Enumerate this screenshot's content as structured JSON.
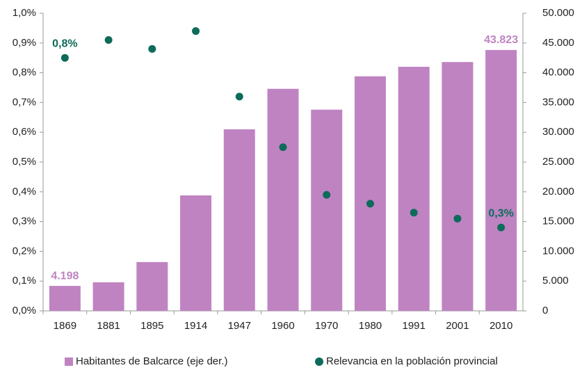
{
  "chart_data": {
    "type": "bar",
    "categories": [
      "1869",
      "1881",
      "1895",
      "1914",
      "1947",
      "1960",
      "1970",
      "1980",
      "1991",
      "2001",
      "2010"
    ],
    "series": [
      {
        "name": "Habitantes de Balcarce (eje der.)",
        "type": "bar",
        "axis": "y2",
        "color": "#bf83c2",
        "values": [
          4198,
          4800,
          8200,
          19400,
          30500,
          37300,
          33800,
          39400,
          41000,
          41800,
          43823
        ],
        "value_labels": [
          "4.198",
          null,
          null,
          null,
          null,
          null,
          null,
          null,
          null,
          null,
          "43.823"
        ]
      },
      {
        "name": "Relevancia en la población provincial",
        "type": "scatter",
        "axis": "y",
        "color": "#0e6b5a",
        "values": [
          0.85,
          0.91,
          0.88,
          0.94,
          0.72,
          0.55,
          0.39,
          0.36,
          0.33,
          0.31,
          0.28
        ],
        "value_labels": [
          "0,8%",
          null,
          null,
          null,
          null,
          null,
          null,
          null,
          null,
          null,
          "0,3%"
        ]
      }
    ],
    "ylim": [
      0,
      1.0
    ],
    "yticks": [
      {
        "value": 0,
        "label": "0,0%"
      },
      {
        "value": 0.1,
        "label": "0,1%"
      },
      {
        "value": 0.2,
        "label": "0,2%"
      },
      {
        "value": 0.3,
        "label": "0,3%"
      },
      {
        "value": 0.4,
        "label": "0,4%"
      },
      {
        "value": 0.5,
        "label": "0,5%"
      },
      {
        "value": 0.6,
        "label": "0,6%"
      },
      {
        "value": 0.7,
        "label": "0,7%"
      },
      {
        "value": 0.8,
        "label": "0,8%"
      },
      {
        "value": 0.9,
        "label": "0,9%"
      },
      {
        "value": 1.0,
        "label": "1,0%"
      }
    ],
    "y2lim": [
      0,
      50000
    ],
    "y2ticks": [
      0,
      {
        "value": 5000,
        "label": "5.000"
      },
      {
        "value": 10000,
        "label": "10.000"
      },
      {
        "value": 15000,
        "label": "15.000"
      },
      {
        "value": 20000,
        "label": "20.000"
      },
      {
        "value": 25000,
        "label": "25.000"
      },
      {
        "value": 30000,
        "label": "30.000"
      },
      {
        "value": 35000,
        "label": "35.000"
      },
      {
        "value": 40000,
        "label": "40.000"
      },
      {
        "value": 45000,
        "label": "45.000"
      },
      {
        "value": 50000,
        "label": "50.000"
      }
    ],
    "grid": false,
    "legend": "bottom"
  }
}
